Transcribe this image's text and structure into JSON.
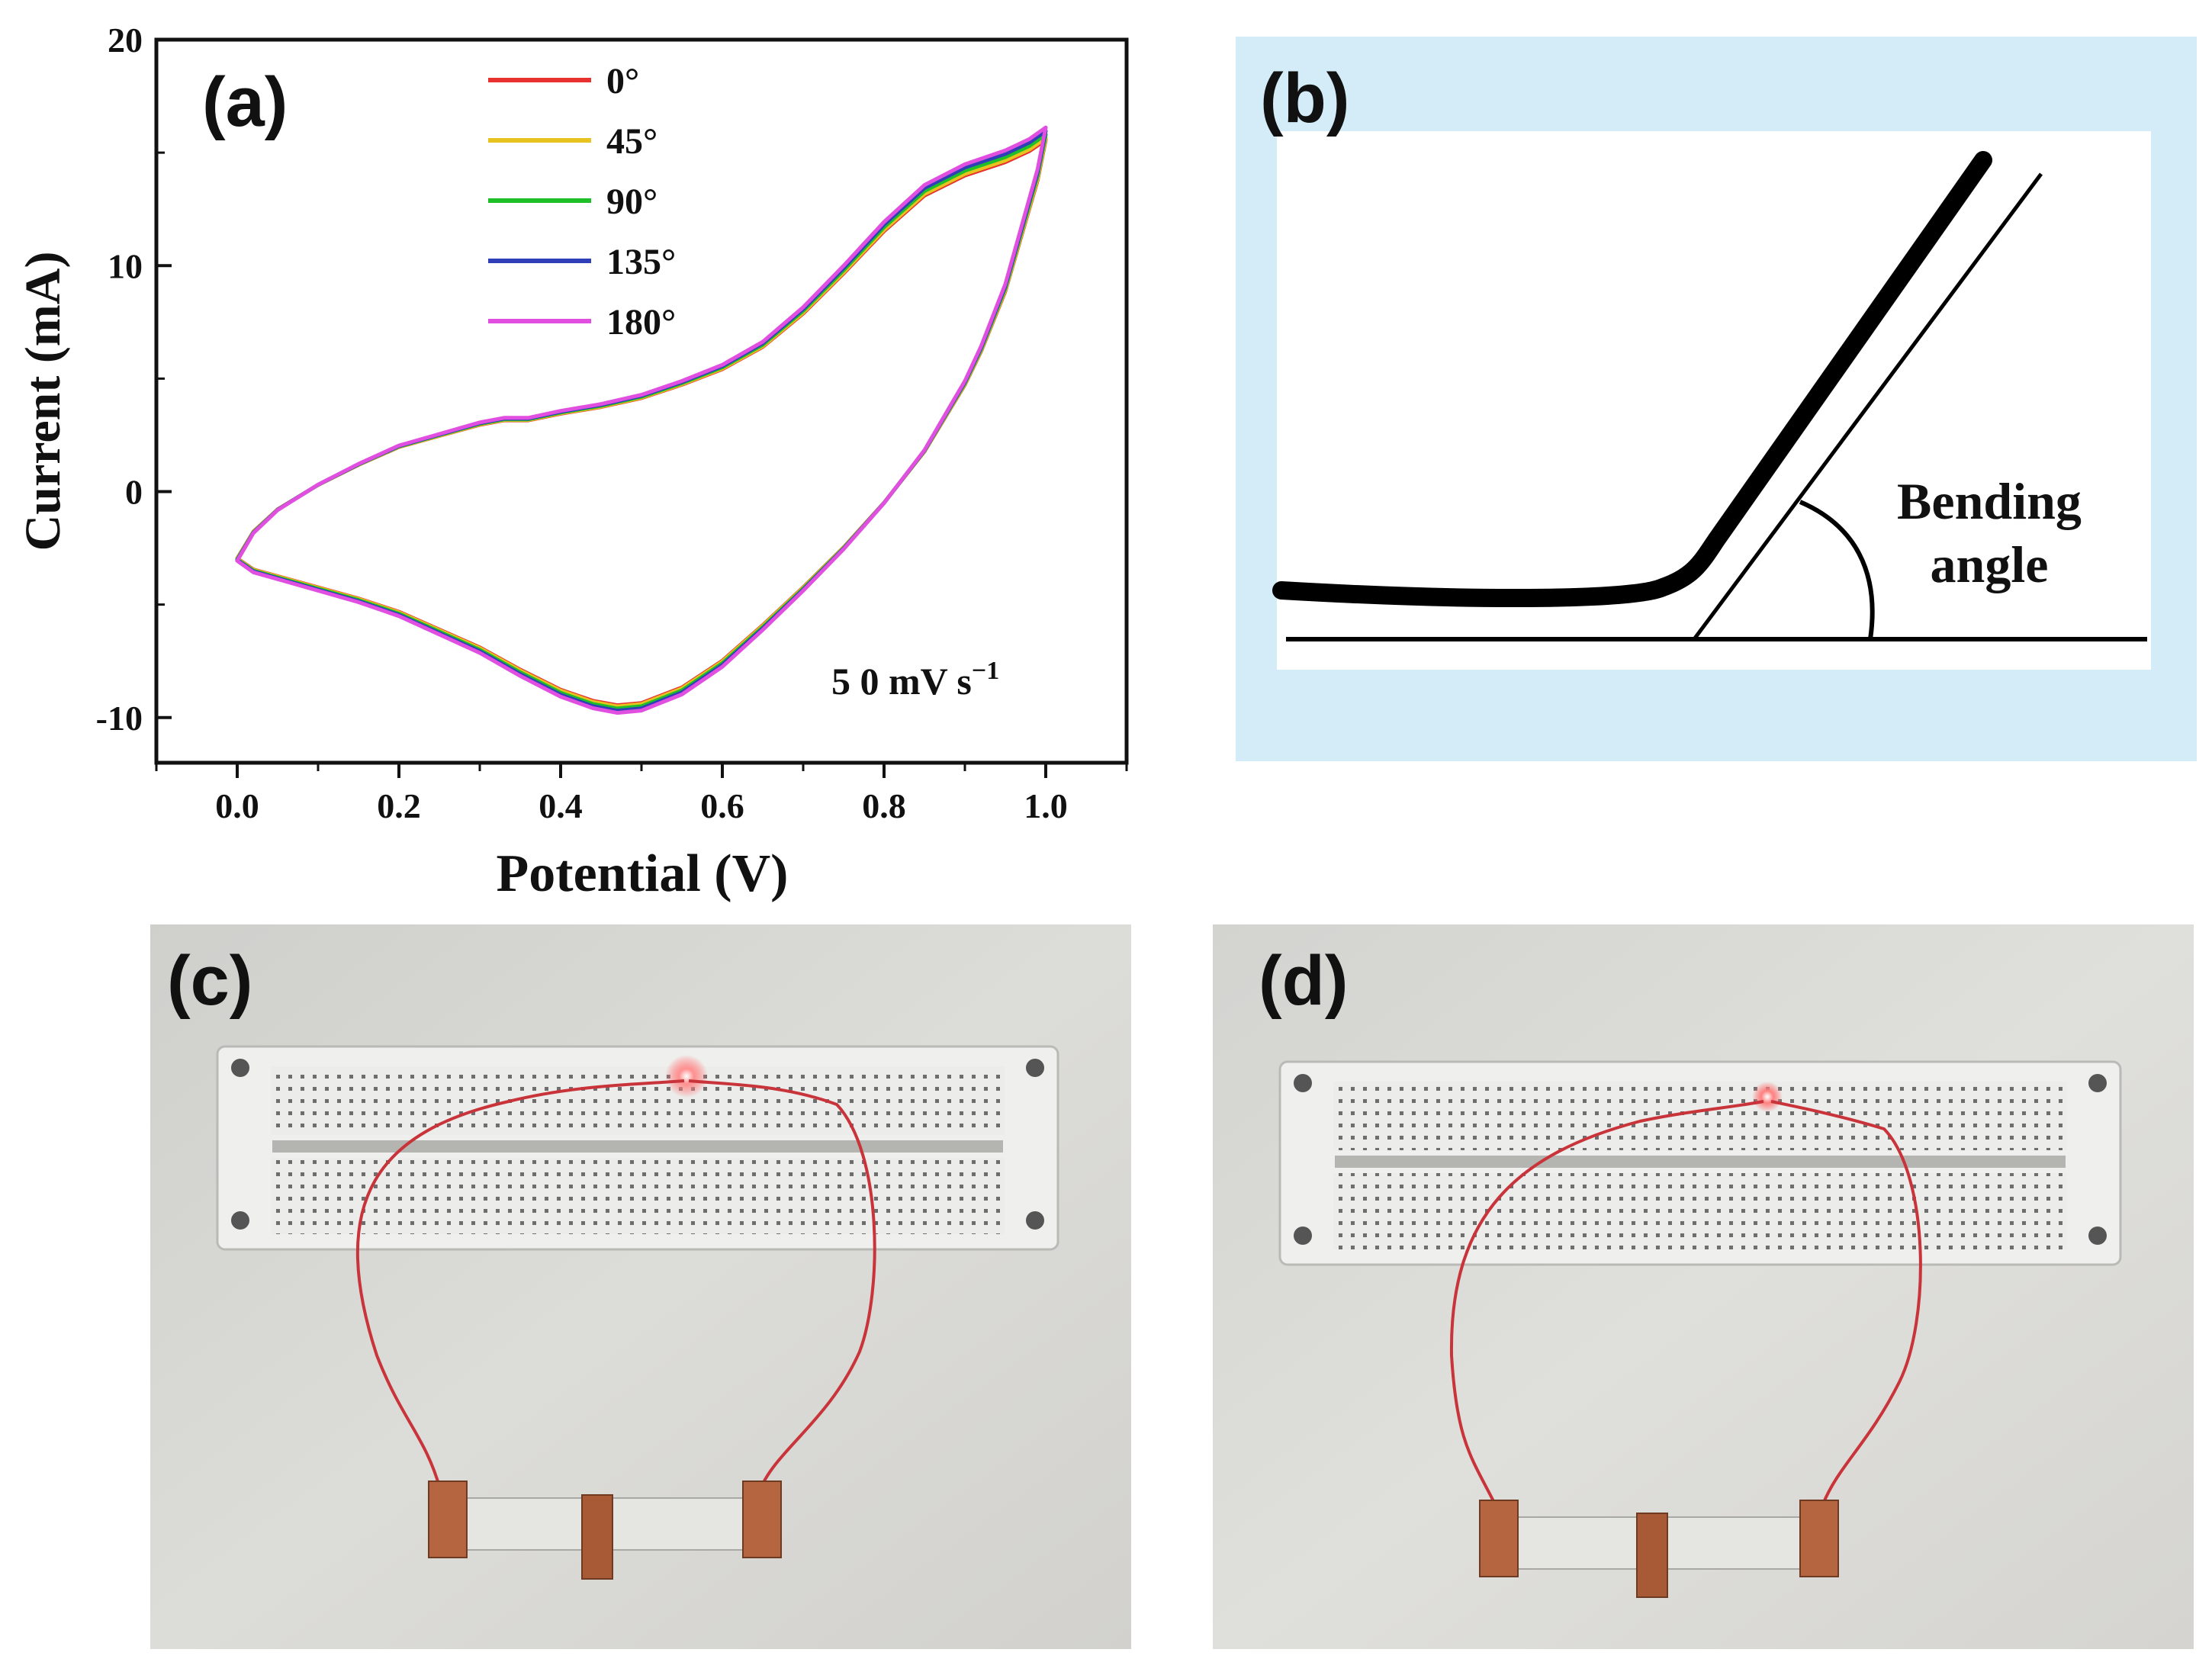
{
  "panels": {
    "a": "(a)",
    "b": "(b)",
    "c": "(c)",
    "d": "(d)"
  },
  "chart_data": {
    "type": "line",
    "title": "",
    "xlabel": "Potential (V)",
    "ylabel": "Current (mA)",
    "xlim": [
      -0.1,
      1.1
    ],
    "ylim": [
      -12,
      20
    ],
    "xticks": [
      "0.0",
      "0.2",
      "0.4",
      "0.6",
      "0.8",
      "1.0"
    ],
    "yticks": [
      "-10",
      "0",
      "10",
      "20"
    ],
    "annotation": "5 0 mV s",
    "annotation_sup": "−1",
    "legend_position": "top-center",
    "series": [
      {
        "name": "0°",
        "color": "#e8322f",
        "scale": 0.985
      },
      {
        "name": "45°",
        "color": "#e6c31e",
        "scale": 0.99
      },
      {
        "name": "90°",
        "color": "#1fbf2a",
        "scale": 1.0
      },
      {
        "name": "135°",
        "color": "#2f3fb8",
        "scale": 1.01
      },
      {
        "name": "180°",
        "color": "#e04fe0",
        "scale": 1.02
      }
    ],
    "anodic_curve": {
      "x": [
        0.0,
        0.02,
        0.05,
        0.1,
        0.15,
        0.2,
        0.25,
        0.3,
        0.33,
        0.36,
        0.4,
        0.45,
        0.5,
        0.55,
        0.6,
        0.65,
        0.7,
        0.75,
        0.8,
        0.85,
        0.9,
        0.95,
        0.98,
        1.0
      ],
      "y": [
        -3.0,
        -1.8,
        -0.8,
        0.3,
        1.2,
        2.0,
        2.5,
        3.0,
        3.2,
        3.2,
        3.5,
        3.8,
        4.2,
        4.8,
        5.5,
        6.5,
        8.0,
        9.8,
        11.7,
        13.3,
        14.2,
        14.8,
        15.3,
        15.8
      ]
    },
    "cathodic_curve": {
      "x": [
        1.0,
        0.99,
        0.97,
        0.95,
        0.92,
        0.9,
        0.87,
        0.85,
        0.8,
        0.75,
        0.7,
        0.65,
        0.6,
        0.55,
        0.5,
        0.47,
        0.44,
        0.4,
        0.35,
        0.3,
        0.25,
        0.2,
        0.15,
        0.1,
        0.05,
        0.02,
        0.0
      ],
      "y": [
        15.8,
        14.0,
        11.5,
        9.0,
        6.3,
        4.8,
        3.0,
        1.8,
        -0.5,
        -2.5,
        -4.3,
        -6.0,
        -7.6,
        -8.8,
        -9.5,
        -9.6,
        -9.4,
        -8.9,
        -8.0,
        -7.0,
        -6.2,
        -5.4,
        -4.8,
        -4.3,
        -3.8,
        -3.5,
        -3.0
      ]
    }
  },
  "diagram_b": {
    "label": "Bending angle",
    "line1": "Bending",
    "line2": "angle",
    "background": "#d4ecf7"
  },
  "photos": {
    "background": "#d9d8d4",
    "breadboard": "#ececea",
    "wire": "#c8343a",
    "tape": "#b5653f",
    "led_glow": "#ff6a6a"
  }
}
